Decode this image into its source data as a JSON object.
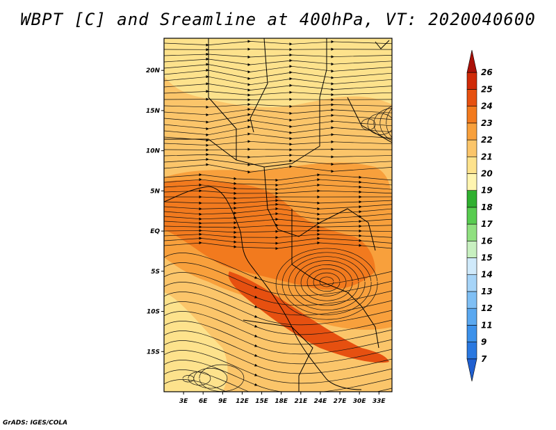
{
  "title": "WBPT [C] and Sreamline at 400hPa, VT: 2020040600",
  "credit": "GrADS: IGES/COLA",
  "map": {
    "lon_labels": [
      "3E",
      "6E",
      "9E",
      "12E",
      "15E",
      "18E",
      "21E",
      "24E",
      "27E",
      "30E",
      "33E"
    ],
    "lon_values": [
      3,
      6,
      9,
      12,
      15,
      18,
      21,
      24,
      27,
      30,
      33
    ],
    "lat_labels": [
      "20N",
      "15N",
      "10N",
      "5N",
      "EQ",
      "5S",
      "10S",
      "15S"
    ],
    "lat_values": [
      20,
      15,
      10,
      5,
      0,
      -5,
      -10,
      -15
    ],
    "lon_range": [
      0,
      35
    ],
    "lat_range": [
      -20,
      24
    ]
  },
  "colorbar": {
    "labels": [
      "7",
      "9",
      "11",
      "12",
      "13",
      "14",
      "15",
      "16",
      "17",
      "18",
      "19",
      "20",
      "21",
      "22",
      "23",
      "24",
      "25",
      "26"
    ],
    "colors": [
      "#1f5fd0",
      "#2a78e0",
      "#3c91ea",
      "#5aa8f0",
      "#7fbff4",
      "#a6d4f8",
      "#d0eafb",
      "#c8f0c0",
      "#90e080",
      "#58cc50",
      "#30b030",
      "#fff5b0",
      "#fde28c",
      "#fbc56a",
      "#f8a03c",
      "#f27a1e",
      "#e65010",
      "#d02a08",
      "#aa1008"
    ]
  },
  "colors": {
    "background": "#ffffff",
    "field_base": "#fbc56a",
    "field_light": "#fde28c",
    "field_warm": "#f8a03c",
    "field_hot": "#f27a1e",
    "field_hotter": "#e65010"
  }
}
